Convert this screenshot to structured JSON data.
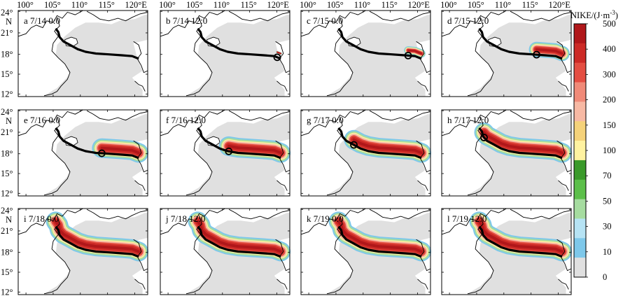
{
  "figure": {
    "lon_ticks": [
      "100°",
      "105°",
      "110°",
      "115°",
      "120°E"
    ],
    "lat_ticks": [
      "24°",
      "21°",
      "18°",
      "15°",
      "12°"
    ],
    "lat_unit": "N",
    "colorbar_title": "NIKE/(J·m",
    "colorbar_title_sup": "-3",
    "colorbar_title_close": ")",
    "colorbar_ticks": [
      "500",
      "400",
      "300",
      "200",
      "150",
      "100",
      "70",
      "50",
      "30",
      "10",
      "0"
    ],
    "colorbar_colors": [
      "#e0e0e0",
      "#7ec8ea",
      "#b6e3f4",
      "#a6dca0",
      "#5cbf4a",
      "#3a9a2a",
      "#fff2a0",
      "#f5d27a",
      "#f7b9a4",
      "#f08a78",
      "#e44e42",
      "#cc2a26",
      "#b0171a"
    ],
    "panels": [
      {
        "letter": "a",
        "time": "7/14 0:0",
        "progress": 0.0
      },
      {
        "letter": "b",
        "time": "7/14 12:0",
        "progress": 0.04
      },
      {
        "letter": "c",
        "time": "7/15 0:0",
        "progress": 0.14
      },
      {
        "letter": "d",
        "time": "7/15 12:0",
        "progress": 0.26
      },
      {
        "letter": "e",
        "time": "7/16 0:0",
        "progress": 0.37
      },
      {
        "letter": "f",
        "time": "7/16 12:0",
        "progress": 0.52
      },
      {
        "letter": "g",
        "time": "7/17 0:0",
        "progress": 0.7
      },
      {
        "letter": "h",
        "time": "7/17 12:0",
        "progress": 0.85
      },
      {
        "letter": "i",
        "time": "7/18 0:0",
        "progress": 1.0
      },
      {
        "letter": "j",
        "time": "7/18 12:0",
        "progress": 1.0
      },
      {
        "letter": "k",
        "time": "7/19 0:0",
        "progress": 1.0
      },
      {
        "letter": "l",
        "time": "7/19 12:0",
        "progress": 1.0
      }
    ]
  }
}
